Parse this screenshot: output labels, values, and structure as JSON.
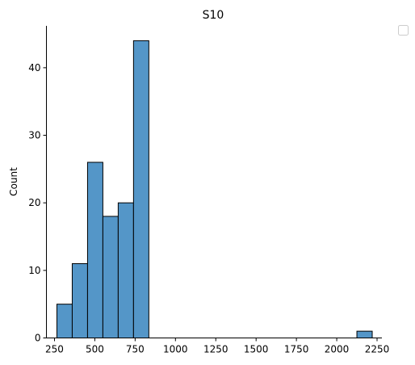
{
  "chart_data": {
    "type": "bar",
    "title": "S10",
    "xlabel": "",
    "ylabel": "Count",
    "bin_edges": [
      265,
      360,
      455,
      550,
      645,
      740,
      835
    ],
    "values": [
      5,
      11,
      26,
      18,
      20,
      44
    ],
    "outlier_bins": [
      {
        "x0": 2125,
        "x1": 2220,
        "value": 1
      }
    ],
    "xlim": [
      200,
      2280
    ],
    "ylim": [
      0,
      46.2
    ],
    "x_ticks": [
      250,
      500,
      750,
      1000,
      1250,
      1500,
      1750,
      2000,
      2250
    ],
    "y_ticks": [
      0,
      10,
      20,
      30,
      40
    ],
    "grid": false,
    "legend": {
      "placement": "top-right",
      "entries": []
    },
    "colors": {
      "bar_fill": "#5496c8",
      "bar_edge": "#000000"
    }
  }
}
